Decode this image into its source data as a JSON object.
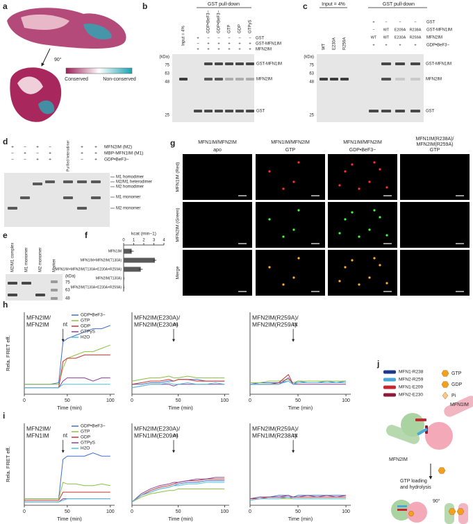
{
  "a": {
    "label": "a",
    "rotation": "90°",
    "legend": [
      "Conserved",
      "Non-conserved"
    ]
  },
  "b": {
    "label": "b",
    "header": "GST pull-down",
    "input": "Input = 4%",
    "lanes": [
      "GDP•BeF3−",
      "GDP•BeF3−",
      "GTP",
      "GDP",
      "GTPγS"
    ],
    "rows": [
      "GST",
      "GST-MFN1IM",
      "MFN2IM"
    ],
    "signs": [
      [
        "+",
        "−",
        "−",
        "−",
        "−",
        "−"
      ],
      [
        "−",
        "+",
        "+",
        "+",
        "+",
        "+"
      ],
      [
        "+",
        "+",
        "+",
        "+",
        "+",
        "+"
      ]
    ],
    "unit": "(kDa)",
    "markers": [
      75,
      63,
      48,
      25
    ],
    "bands": [
      "GST-MFN1IM",
      "MFN2IM",
      "GST"
    ]
  },
  "c": {
    "label": "c",
    "input_header": "Input = 4%",
    "header": "GST pull-down",
    "lanes": [
      "WT",
      "E230A",
      "R259A"
    ],
    "rows": [
      "GST",
      "GST-MFN1IM",
      "MFN2IM",
      "GDP•BeF3−"
    ],
    "signs": [
      [
        "+",
        "−",
        "−",
        "−"
      ],
      [
        "−",
        "WT",
        "E209A",
        "R238A"
      ],
      [
        "WT",
        "WT",
        "E230A",
        "R259A"
      ],
      [
        "+",
        "+",
        "+",
        "+"
      ]
    ],
    "unit": "(kDa)",
    "markers": [
      75,
      63,
      48,
      25
    ],
    "bands": [
      "GST-MFN1IM",
      "MFN2IM",
      "GST"
    ]
  },
  "d": {
    "label": "d",
    "rows": [
      "MFN2IM (M2)",
      "MBP-MFN1IM (M1)",
      "GDP•BeF3−"
    ],
    "signs": [
      [
        "+",
        "−",
        "+",
        "−",
        "+",
        "+"
      ],
      [
        "−",
        "+",
        "−",
        "+",
        "+",
        "+"
      ],
      [
        "−",
        "−",
        "+",
        "+",
        "−",
        "+"
      ]
    ],
    "purified": "Purified heterodimer",
    "annotations": [
      "M1 homodimer",
      "M2/M1 heterodimer",
      "M2 homodimer",
      "M1 monomer",
      "M2 monomer"
    ]
  },
  "e": {
    "label": "e",
    "lanes": [
      "M2/M1 complex",
      "M1 monomer",
      "M2 monomer",
      "Marker"
    ],
    "unit": "(kDa)",
    "markers": [
      75,
      63,
      48
    ]
  },
  "f": {
    "label": "f",
    "chart_data": {
      "type": "barh",
      "title": "kcat (min−1)",
      "categories": [
        "MFN1IM",
        "MFN1IM+MFN2IM(T130A)",
        "MFN1IM+MFN2IM(T130A+E230A+R259A)",
        "MFN2IM(T130A)",
        "MFN2IM(T130A+E230A+R259A)"
      ],
      "values": [
        0.8,
        3.1,
        1.7,
        0.05,
        0.05
      ],
      "errors": [
        0.2,
        0.15,
        0.2,
        0.03,
        0.03
      ],
      "color": "#5a5a5a",
      "xlim": [
        0,
        4
      ],
      "xticks": [
        0,
        1,
        2,
        3,
        4
      ]
    }
  },
  "g": {
    "label": "g",
    "columns": [
      [
        "MFN1IM/MFN2IM"
      ],
      [
        "MFN1IM/MFN2IM"
      ],
      [
        "MFN1IM/MFN2IM"
      ],
      [
        "MFN1IM(R238A)/",
        "MFN2IM(R259A)"
      ]
    ],
    "conditions": [
      "apo",
      "GTP",
      "GDP•BeF3−",
      "GTP"
    ],
    "rows": [
      "MFN1IM (Red)",
      "MFN2IM (Green)",
      "Merge"
    ]
  },
  "h": {
    "label": "h",
    "charts": [
      {
        "type": "line",
        "title": [
          "MFN2IM/",
          "MFN2IM"
        ],
        "ylabel": "Rela. FRET eff.",
        "xlabel": "Time (min)",
        "annotation": "nt",
        "annotation_x": 45,
        "x": [
          0,
          10,
          20,
          30,
          40,
          45,
          50,
          60,
          70,
          80,
          90,
          100
        ],
        "xlim": [
          0,
          105
        ],
        "xticks": [
          0,
          50,
          100
        ],
        "ylim": [
          0,
          0.25
        ],
        "series": [
          {
            "name": "GDP•BeF3−",
            "color": "#3b6fd1",
            "values": [
              0.03,
              0.03,
              0.03,
              0.03,
              0.035,
              0.16,
              0.17,
              0.18,
              0.19,
              0.2,
              0.2,
              0.21
            ]
          },
          {
            "name": "GTP",
            "color": "#8cbf3f",
            "values": [
              0.03,
              0.03,
              0.03,
              0.03,
              0.03,
              0.08,
              0.11,
              0.12,
              0.13,
              0.13,
              0.14,
              0.15
            ]
          },
          {
            "name": "GDP",
            "color": "#c8312d",
            "values": [
              0.02,
              0.02,
              0.02,
              0.02,
              0.02,
              0.1,
              0.11,
              0.11,
              0.12,
              0.12,
              0.12,
              0.12
            ]
          },
          {
            "name": "GTPγS",
            "color": "#8b3f9a",
            "values": [
              0.02,
              0.02,
              0.02,
              0.02,
              0.02,
              0.04,
              0.05,
              0.05,
              0.05,
              0.04,
              0.05,
              0.05
            ]
          },
          {
            "name": "H2O",
            "color": "#4fc3d8",
            "values": [
              0.02,
              0.02,
              0.02,
              0.02,
              0.02,
              0.03,
              0.03,
              0.03,
              0.03,
              0.03,
              0.03,
              0.03
            ]
          }
        ]
      },
      {
        "type": "line",
        "title": [
          "MFN2IM(E230A)/",
          "MFN2IM(E230A)"
        ],
        "xlabel": "Time (min)",
        "annotation": "nt",
        "annotation_x": 45,
        "x": [
          0,
          10,
          20,
          30,
          40,
          45,
          50,
          60,
          70,
          80,
          90,
          100
        ],
        "xlim": [
          0,
          105
        ],
        "xticks": [
          0,
          50,
          100
        ],
        "ylim": [
          0,
          0.25
        ],
        "series": [
          {
            "color": "#3b6fd1",
            "values": [
              0.03,
              0.03,
              0.035,
              0.035,
              0.04,
              0.04,
              0.045,
              0.045,
              0.045,
              0.04,
              0.04,
              0.04
            ]
          },
          {
            "color": "#8cbf3f",
            "values": [
              0.04,
              0.045,
              0.05,
              0.05,
              0.055,
              0.05,
              0.05,
              0.055,
              0.05,
              0.05,
              0.05,
              0.05
            ]
          },
          {
            "color": "#c8312d",
            "values": [
              0.03,
              0.035,
              0.04,
              0.04,
              0.045,
              0.04,
              0.045,
              0.045,
              0.04,
              0.04,
              0.04,
              0.04
            ]
          },
          {
            "color": "#8b3f9a",
            "values": [
              0.02,
              0.025,
              0.03,
              0.03,
              0.03,
              0.025,
              0.03,
              0.03,
              0.03,
              0.03,
              0.03,
              0.03
            ]
          },
          {
            "color": "#4fc3d8",
            "values": [
              0.02,
              0.025,
              0.03,
              0.03,
              0.035,
              0.03,
              0.03,
              0.035,
              0.03,
              0.03,
              0.035,
              0.03
            ]
          }
        ]
      },
      {
        "type": "line",
        "title": [
          "MFN2IM(R259A)/",
          "MFN2IM(R259A)"
        ],
        "xlabel": "Time (min)",
        "annotation": "nt",
        "annotation_x": 45,
        "x": [
          0,
          10,
          20,
          30,
          40,
          45,
          50,
          60,
          70,
          80,
          90,
          100
        ],
        "xlim": [
          0,
          105
        ],
        "xticks": [
          0,
          50,
          100
        ],
        "ylim": [
          0,
          0.25
        ],
        "series": [
          {
            "color": "#3b6fd1",
            "values": [
              0.03,
              0.035,
              0.035,
              0.035,
              0.04,
              0.03,
              0.04,
              0.035,
              0.035,
              0.04,
              0.035,
              0.04
            ]
          },
          {
            "color": "#8cbf3f",
            "values": [
              0.035,
              0.035,
              0.04,
              0.04,
              0.045,
              0.035,
              0.04,
              0.04,
              0.04,
              0.04,
              0.04,
              0.04
            ]
          },
          {
            "color": "#c8312d",
            "values": [
              0.03,
              0.03,
              0.03,
              0.035,
              0.06,
              0.03,
              0.035,
              0.035,
              0.035,
              0.035,
              0.035,
              0.035
            ]
          },
          {
            "color": "#8b3f9a",
            "values": [
              0.03,
              0.03,
              0.03,
              0.03,
              0.05,
              0.03,
              0.03,
              0.03,
              0.03,
              0.03,
              0.03,
              0.03
            ]
          },
          {
            "color": "#4fc3d8",
            "values": [
              0.03,
              0.03,
              0.03,
              0.03,
              0.04,
              0.03,
              0.035,
              0.035,
              0.035,
              0.035,
              0.035,
              0.035
            ]
          }
        ]
      }
    ]
  },
  "i": {
    "label": "i",
    "charts": [
      {
        "type": "line",
        "title": [
          "MFN2IM/",
          "MFN1IM"
        ],
        "ylabel": "Rela. FRET eff.",
        "xlabel": "Time (min)",
        "annotation": "nt",
        "annotation_x": 45,
        "x": [
          0,
          10,
          20,
          30,
          40,
          45,
          50,
          60,
          70,
          80,
          90,
          100
        ],
        "xlim": [
          0,
          105
        ],
        "xticks": [
          0,
          50,
          100
        ],
        "ylim": [
          0,
          0.25
        ],
        "series": [
          {
            "name": "GDP•BeF3−",
            "color": "#3b6fd1",
            "values": [
              0.02,
              0.02,
              0.02,
              0.02,
              0.02,
              0.14,
              0.15,
              0.15,
              0.15,
              0.16,
              0.15,
              0.15
            ]
          },
          {
            "name": "GTP",
            "color": "#8cbf3f",
            "values": [
              0.02,
              0.02,
              0.02,
              0.02,
              0.02,
              0.07,
              0.065,
              0.065,
              0.06,
              0.06,
              0.065,
              0.06
            ]
          },
          {
            "name": "GDP",
            "color": "#c8312d",
            "values": [
              0.015,
              0.015,
              0.015,
              0.015,
              0.015,
              0.04,
              0.04,
              0.04,
              0.04,
              0.04,
              0.04,
              0.04
            ]
          },
          {
            "name": "GTPγS",
            "color": "#8b3f9a",
            "values": [
              0.01,
              0.01,
              0.01,
              0.01,
              0.01,
              0.02,
              0.02,
              0.02,
              0.02,
              0.02,
              0.02,
              0.02
            ]
          },
          {
            "name": "H2O",
            "color": "#4fc3d8",
            "values": [
              0.01,
              0.01,
              0.01,
              0.01,
              0.01,
              0.015,
              0.02,
              0.02,
              0.02,
              0.02,
              0.02,
              0.02
            ]
          }
        ]
      },
      {
        "type": "line",
        "title": [
          "MFN2IM(E230A)/",
          "MFN1IM(E209A)"
        ],
        "xlabel": "Time (min)",
        "annotation": "nt",
        "annotation_x": 45,
        "x": [
          0,
          10,
          20,
          30,
          40,
          45,
          50,
          60,
          70,
          80,
          90,
          100
        ],
        "xlim": [
          0,
          105
        ],
        "xticks": [
          0,
          50,
          100
        ],
        "ylim": [
          0,
          0.25
        ],
        "series": [
          {
            "color": "#3b6fd1",
            "values": [
              0.01,
              0.03,
              0.04,
              0.05,
              0.055,
              0.06,
              0.065,
              0.07,
              0.07,
              0.075,
              0.075,
              0.075
            ]
          },
          {
            "color": "#8cbf3f",
            "values": [
              0.01,
              0.025,
              0.035,
              0.04,
              0.045,
              0.045,
              0.05,
              0.05,
              0.05,
              0.05,
              0.05,
              0.05
            ]
          },
          {
            "color": "#c8312d",
            "values": [
              0.01,
              0.03,
              0.045,
              0.055,
              0.06,
              0.065,
              0.07,
              0.075,
              0.075,
              0.08,
              0.08,
              0.08
            ]
          },
          {
            "color": "#8b3f9a",
            "values": [
              0.01,
              0.035,
              0.05,
              0.06,
              0.065,
              0.07,
              0.07,
              0.075,
              0.08,
              0.08,
              0.085,
              0.085
            ]
          },
          {
            "color": "#4fc3d8",
            "values": [
              0.01,
              0.03,
              0.04,
              0.05,
              0.055,
              0.06,
              0.06,
              0.065,
              0.065,
              0.07,
              0.07,
              0.07
            ]
          }
        ]
      },
      {
        "type": "line",
        "title": [
          "MFN2IM(R259A)/",
          "MFN1IM(R238A)"
        ],
        "xlabel": "Time (min)",
        "annotation": "nt",
        "annotation_x": 45,
        "x": [
          0,
          10,
          20,
          30,
          40,
          45,
          50,
          60,
          70,
          80,
          90,
          100
        ],
        "xlim": [
          0,
          105
        ],
        "xticks": [
          0,
          50,
          100
        ],
        "ylim": [
          0,
          0.25
        ],
        "series": [
          {
            "color": "#3b6fd1",
            "values": [
              0.02,
              0.025,
              0.025,
              0.03,
              0.03,
              0.025,
              0.03,
              0.03,
              0.03,
              0.03,
              0.03,
              0.03
            ]
          },
          {
            "color": "#8cbf3f",
            "values": [
              0.015,
              0.02,
              0.02,
              0.02,
              0.02,
              0.02,
              0.02,
              0.02,
              0.02,
              0.02,
              0.02,
              0.02
            ]
          },
          {
            "color": "#c8312d",
            "values": [
              0.02,
              0.02,
              0.025,
              0.025,
              0.025,
              0.025,
              0.025,
              0.025,
              0.025,
              0.025,
              0.025,
              0.025
            ]
          },
          {
            "color": "#8b3f9a",
            "values": [
              0.02,
              0.025,
              0.025,
              0.025,
              0.03,
              0.025,
              0.025,
              0.03,
              0.025,
              0.03,
              0.025,
              0.03
            ]
          },
          {
            "color": "#4fc3d8",
            "values": [
              0.015,
              0.02,
              0.02,
              0.02,
              0.025,
              0.02,
              0.02,
              0.02,
              0.02,
              0.02,
              0.02,
              0.02
            ]
          }
        ]
      }
    ]
  },
  "j": {
    "label": "j",
    "legend": [
      {
        "name": "MFN1-R238",
        "color": "#1a3a8a"
      },
      {
        "name": "MFN2-R259",
        "color": "#4aa8d8"
      },
      {
        "name": "MFN1-E209",
        "color": "#c4272f"
      },
      {
        "name": "MFN2-E230",
        "color": "#8c1a3a"
      }
    ],
    "nucleotides": [
      "GTP",
      "GDP",
      "Pi"
    ],
    "molecules": [
      "MFN1IM",
      "MFN2IM"
    ],
    "step": [
      "GTP loading",
      "and hydrolysis"
    ],
    "rotation": "90°"
  }
}
